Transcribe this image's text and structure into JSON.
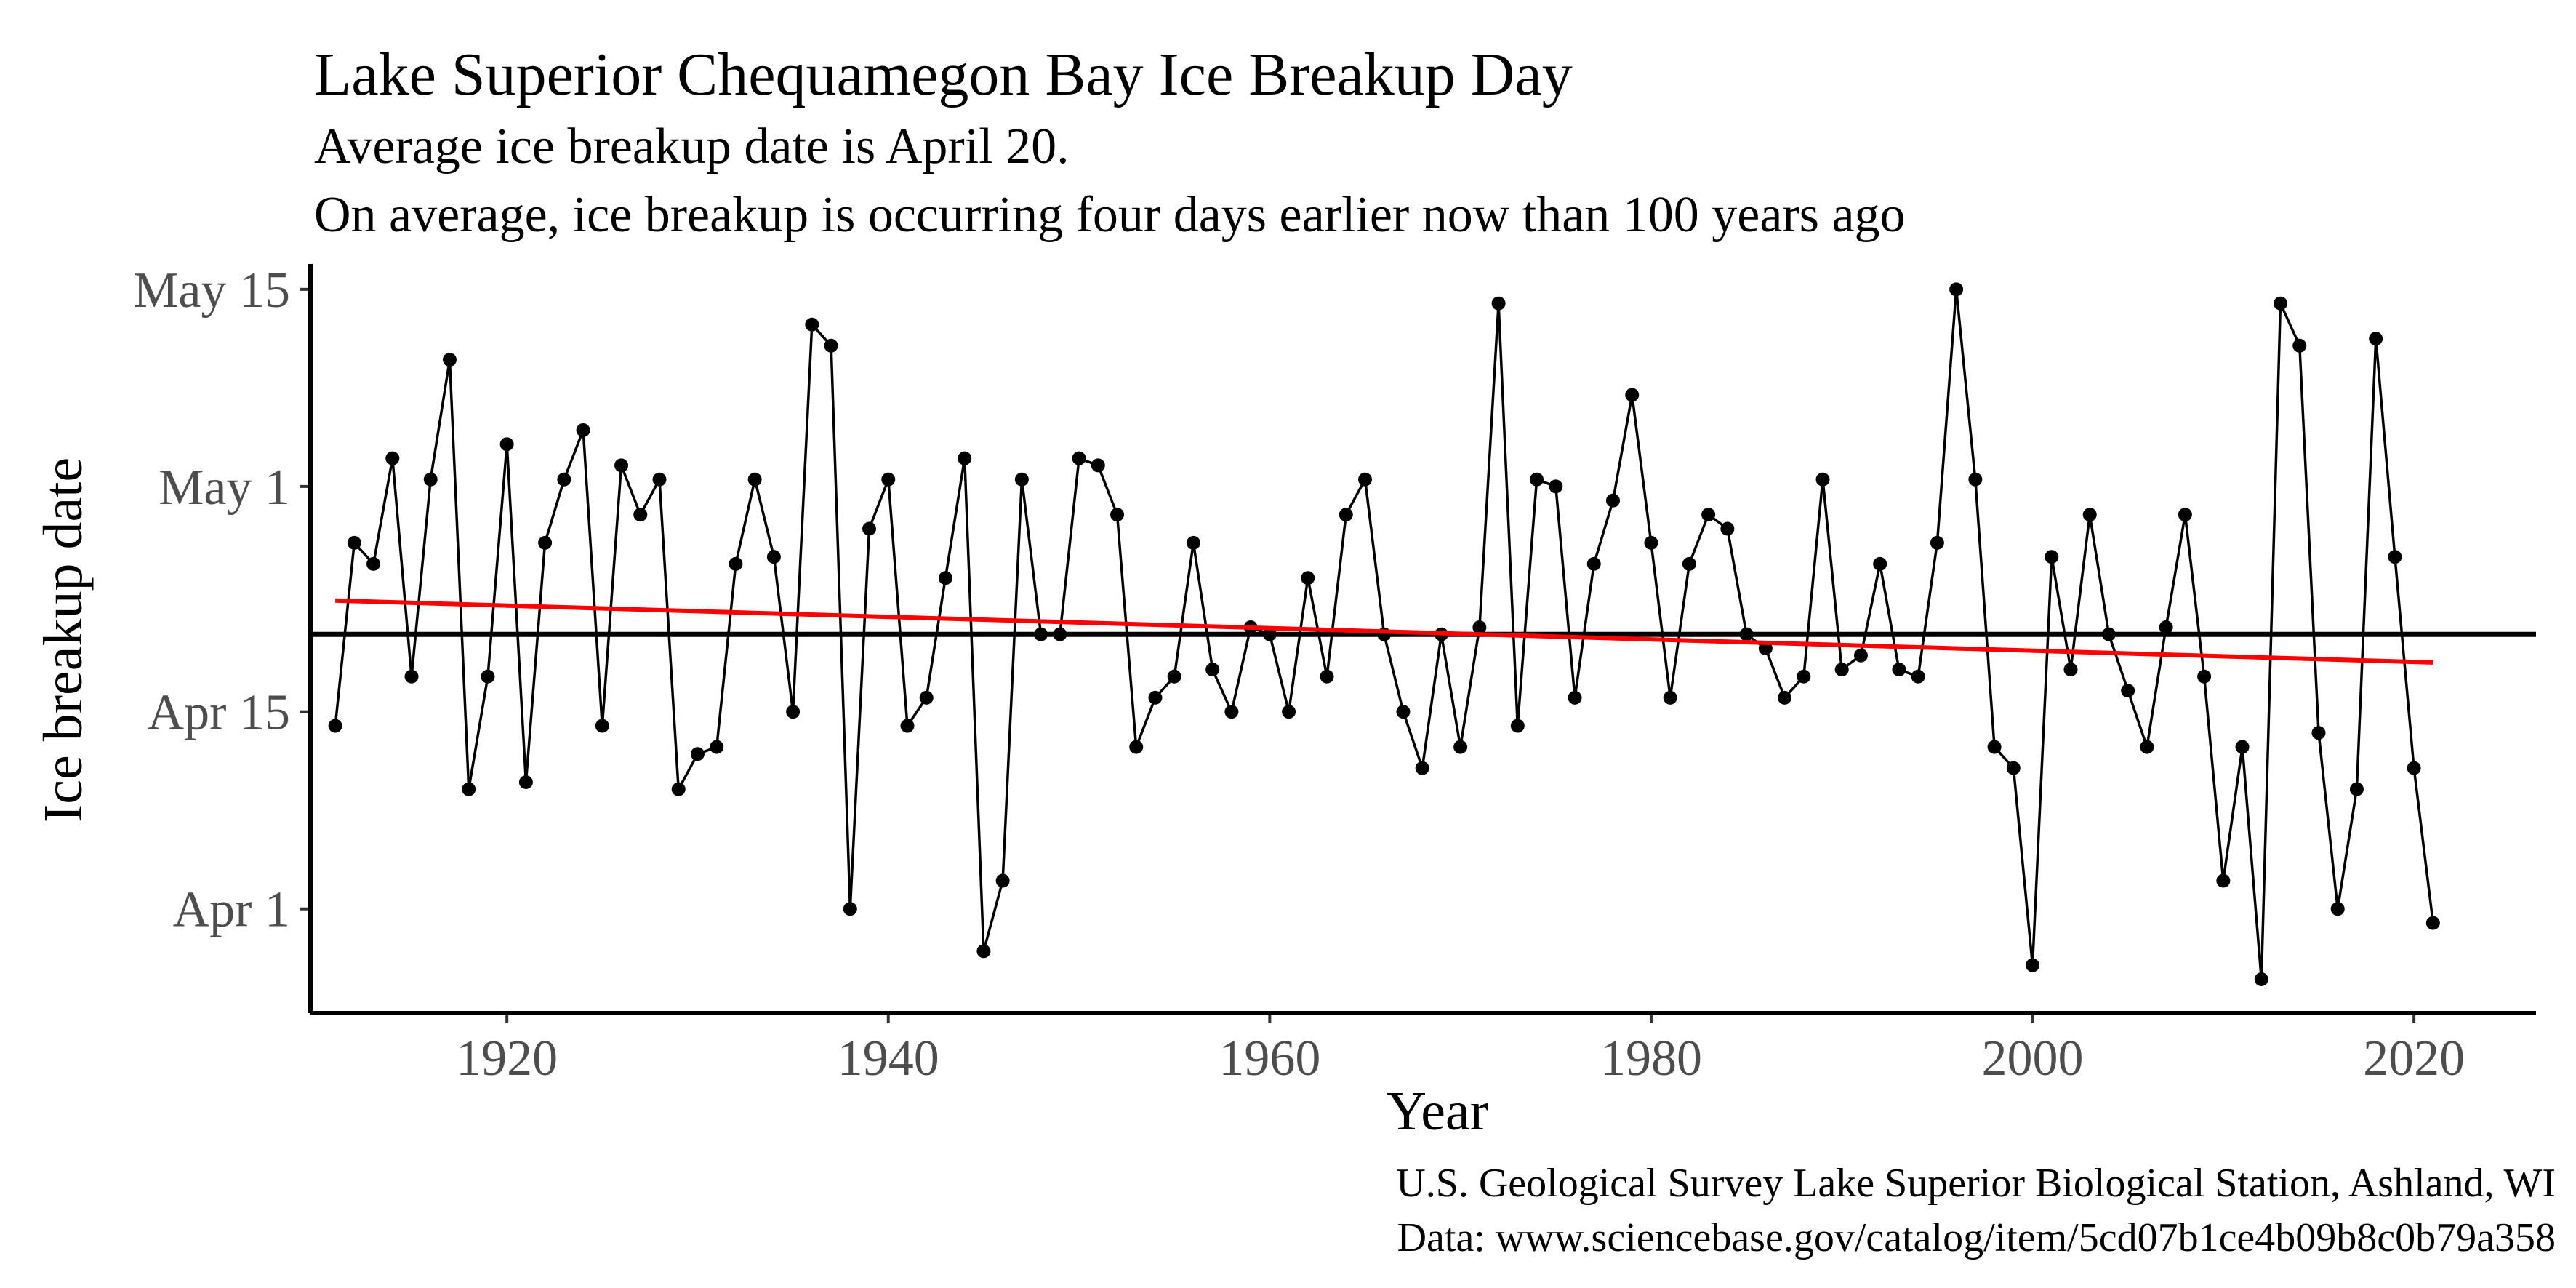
{
  "chart_data": {
    "type": "line",
    "title": "Lake Superior Chequamegon Bay Ice Breakup Day",
    "subtitle": [
      "Average ice breakup date is April 20.",
      "On average, ice breakup is occurring four days earlier now than 100 years ago"
    ],
    "xlabel": "Year",
    "ylabel": "Ice breakup date",
    "caption": [
      "U.S. Geological Survey Lake Superior Biological Station, Ashland, WI",
      "Data: www.sciencebase.gov/catalog/item/5cd07b1ce4b09b8c0b79a358"
    ],
    "x_ticks": [
      1920,
      1940,
      1960,
      1980,
      2000,
      2020
    ],
    "y_ticks": [
      {
        "label": "Apr  1",
        "value": 91
      },
      {
        "label": "Apr 15",
        "value": 105
      },
      {
        "label": "May  1",
        "value": 121
      },
      {
        "label": "May 15",
        "value": 135
      }
    ],
    "xlim": [
      1909.7,
      2026.4
    ],
    "ylim": [
      83.6,
      136.8
    ],
    "mean_line": {
      "value": 110.5,
      "color": "#000000"
    },
    "trend_line": {
      "x": [
        1911,
        2021
      ],
      "y": [
        112.9,
        108.5
      ],
      "color": "#ff0000"
    },
    "series": [
      {
        "name": "Ice breakup day",
        "color": "#000000",
        "x": [
          1911,
          1912,
          1913,
          1914,
          1915,
          1916,
          1917,
          1918,
          1919,
          1920,
          1921,
          1922,
          1923,
          1924,
          1925,
          1926,
          1927,
          1928,
          1929,
          1930,
          1931,
          1932,
          1933,
          1934,
          1935,
          1936,
          1937,
          1938,
          1939,
          1940,
          1941,
          1942,
          1943,
          1944,
          1945,
          1946,
          1947,
          1948,
          1949,
          1950,
          1951,
          1952,
          1953,
          1954,
          1955,
          1956,
          1957,
          1958,
          1959,
          1960,
          1961,
          1962,
          1963,
          1964,
          1965,
          1966,
          1967,
          1968,
          1969,
          1970,
          1971,
          1972,
          1973,
          1974,
          1975,
          1976,
          1977,
          1978,
          1979,
          1980,
          1981,
          1982,
          1983,
          1984,
          1985,
          1986,
          1987,
          1988,
          1989,
          1990,
          1991,
          1992,
          1993,
          1994,
          1995,
          1996,
          1997,
          1998,
          1999,
          2000,
          2001,
          2002,
          2003,
          2004,
          2005,
          2006,
          2007,
          2008,
          2009,
          2010,
          2011,
          2012,
          2013,
          2014,
          2015,
          2016,
          2017,
          2018,
          2019,
          2020,
          2021
        ],
        "values": [
          104,
          117,
          115.5,
          123,
          107.5,
          121.5,
          130,
          99.5,
          107.5,
          124,
          100,
          117,
          121.5,
          125,
          104,
          122.5,
          119,
          121.5,
          99.5,
          102,
          102.5,
          115.5,
          121.5,
          116,
          105,
          132.5,
          131,
          91,
          118,
          121.5,
          104,
          106,
          114.5,
          123,
          88,
          93,
          121.5,
          110.5,
          110.5,
          123,
          122.5,
          119,
          102.5,
          106,
          107.5,
          117,
          108,
          105,
          111,
          110.5,
          105,
          114.5,
          107.5,
          119,
          121.5,
          110.5,
          105,
          101,
          110.5,
          102.5,
          111,
          134,
          104,
          121.5,
          121,
          106,
          115.5,
          120,
          127.5,
          117,
          106,
          115.5,
          119,
          118,
          110.5,
          109.5,
          106,
          107.5,
          121.5,
          108,
          109,
          115.5,
          108,
          107.5,
          117,
          135,
          121.5,
          102.5,
          101,
          87,
          116,
          108,
          119,
          110.5,
          106.5,
          102.5,
          111,
          119,
          107.5,
          93,
          102.5,
          86,
          134,
          131,
          103.5,
          91,
          99.5,
          131.5,
          116,
          101,
          90
        ]
      }
    ]
  }
}
